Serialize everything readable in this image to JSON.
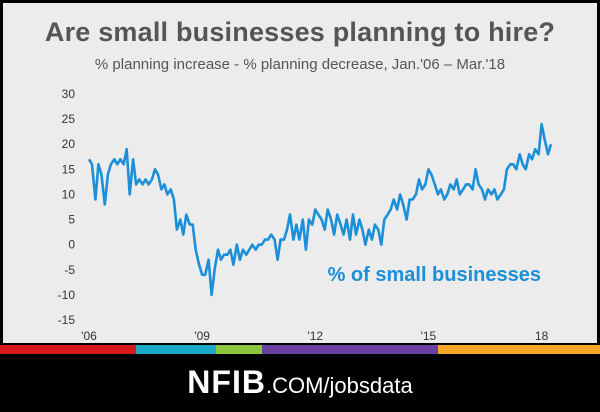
{
  "header": {
    "title": "Are small businesses planning to hire?",
    "subtitle": "% planning increase - % planning decrease, Jan.'06 – Mar.'18"
  },
  "footer": {
    "brand": "NFIB",
    "site": ".COM/jobsdata"
  },
  "colors": {
    "line": "#1b8fd8",
    "stripes": [
      "#d7191c",
      "#1aa8c8",
      "#8cc63f",
      "#6a3fa0",
      "#f5a623"
    ]
  },
  "chart_data": {
    "type": "line",
    "title": "Are small businesses planning to hire?",
    "subtitle": "% planning increase - % planning decrease, Jan.'06 – Mar.'18",
    "xlabel": "",
    "ylabel": "",
    "ylim": [
      -15,
      30
    ],
    "yticks": [
      -15,
      -10,
      -5,
      0,
      5,
      10,
      15,
      20,
      25,
      30
    ],
    "xlim": [
      2006.0,
      2018.25
    ],
    "xticks": [
      {
        "value": 2006.0,
        "label": "'06"
      },
      {
        "value": 2009.0,
        "label": "'09"
      },
      {
        "value": 2012.0,
        "label": "'12"
      },
      {
        "value": 2015.0,
        "label": "'15"
      },
      {
        "value": 2018.0,
        "label": "18"
      }
    ],
    "grid": false,
    "annotation": "% of small businesses",
    "series": [
      {
        "name": "",
        "points": [
          [
            2006.0,
            17
          ],
          [
            2006.08,
            16
          ],
          [
            2006.17,
            9
          ],
          [
            2006.25,
            16
          ],
          [
            2006.33,
            14
          ],
          [
            2006.42,
            8
          ],
          [
            2006.5,
            14
          ],
          [
            2006.58,
            16
          ],
          [
            2006.67,
            17
          ],
          [
            2006.75,
            16
          ],
          [
            2006.83,
            17
          ],
          [
            2006.92,
            16
          ],
          [
            2007.0,
            19
          ],
          [
            2007.08,
            10
          ],
          [
            2007.17,
            17
          ],
          [
            2007.25,
            12
          ],
          [
            2007.33,
            13
          ],
          [
            2007.42,
            12
          ],
          [
            2007.5,
            13
          ],
          [
            2007.58,
            12
          ],
          [
            2007.67,
            13
          ],
          [
            2007.75,
            15
          ],
          [
            2007.83,
            14
          ],
          [
            2007.92,
            11
          ],
          [
            2008.0,
            12
          ],
          [
            2008.08,
            10
          ],
          [
            2008.17,
            11
          ],
          [
            2008.25,
            9
          ],
          [
            2008.33,
            3
          ],
          [
            2008.42,
            5
          ],
          [
            2008.5,
            2
          ],
          [
            2008.58,
            6
          ],
          [
            2008.67,
            4
          ],
          [
            2008.75,
            4
          ],
          [
            2008.83,
            -1
          ],
          [
            2008.92,
            -4
          ],
          [
            2009.0,
            -6
          ],
          [
            2009.08,
            -6
          ],
          [
            2009.17,
            -3
          ],
          [
            2009.25,
            -10
          ],
          [
            2009.33,
            -5
          ],
          [
            2009.42,
            -1
          ],
          [
            2009.5,
            -3
          ],
          [
            2009.58,
            -2
          ],
          [
            2009.67,
            -2
          ],
          [
            2009.75,
            -1
          ],
          [
            2009.83,
            -4
          ],
          [
            2009.92,
            0
          ],
          [
            2010.0,
            -3
          ],
          [
            2010.08,
            -1
          ],
          [
            2010.17,
            -2
          ],
          [
            2010.25,
            -1
          ],
          [
            2010.33,
            0
          ],
          [
            2010.42,
            -1
          ],
          [
            2010.5,
            0
          ],
          [
            2010.58,
            0
          ],
          [
            2010.67,
            1
          ],
          [
            2010.75,
            1
          ],
          [
            2010.83,
            2
          ],
          [
            2010.92,
            1
          ],
          [
            2011.0,
            -3
          ],
          [
            2011.08,
            1
          ],
          [
            2011.17,
            1
          ],
          [
            2011.25,
            3
          ],
          [
            2011.33,
            6
          ],
          [
            2011.42,
            1
          ],
          [
            2011.5,
            4
          ],
          [
            2011.58,
            1
          ],
          [
            2011.67,
            5
          ],
          [
            2011.75,
            -1
          ],
          [
            2011.83,
            5
          ],
          [
            2011.92,
            4
          ],
          [
            2012.0,
            7
          ],
          [
            2012.08,
            6
          ],
          [
            2012.17,
            5
          ],
          [
            2012.25,
            3
          ],
          [
            2012.33,
            7
          ],
          [
            2012.42,
            5
          ],
          [
            2012.5,
            2
          ],
          [
            2012.58,
            6
          ],
          [
            2012.67,
            4
          ],
          [
            2012.75,
            2
          ],
          [
            2012.83,
            5
          ],
          [
            2012.92,
            1
          ],
          [
            2013.0,
            6
          ],
          [
            2013.08,
            2
          ],
          [
            2013.17,
            5
          ],
          [
            2013.25,
            3
          ],
          [
            2013.33,
            0
          ],
          [
            2013.42,
            3
          ],
          [
            2013.5,
            1
          ],
          [
            2013.58,
            4
          ],
          [
            2013.67,
            3
          ],
          [
            2013.75,
            0
          ],
          [
            2013.83,
            5
          ],
          [
            2013.92,
            6
          ],
          [
            2014.0,
            7
          ],
          [
            2014.08,
            9
          ],
          [
            2014.17,
            7
          ],
          [
            2014.25,
            10
          ],
          [
            2014.33,
            8
          ],
          [
            2014.42,
            5
          ],
          [
            2014.5,
            9
          ],
          [
            2014.58,
            9
          ],
          [
            2014.67,
            10
          ],
          [
            2014.75,
            13
          ],
          [
            2014.83,
            11
          ],
          [
            2014.92,
            12
          ],
          [
            2015.0,
            15
          ],
          [
            2015.08,
            14
          ],
          [
            2015.17,
            12
          ],
          [
            2015.25,
            10
          ],
          [
            2015.33,
            11
          ],
          [
            2015.42,
            9
          ],
          [
            2015.5,
            10
          ],
          [
            2015.58,
            12
          ],
          [
            2015.67,
            11
          ],
          [
            2015.75,
            13
          ],
          [
            2015.83,
            10
          ],
          [
            2015.92,
            11
          ],
          [
            2016.0,
            12
          ],
          [
            2016.08,
            12
          ],
          [
            2016.17,
            11
          ],
          [
            2016.25,
            15
          ],
          [
            2016.33,
            12
          ],
          [
            2016.42,
            11
          ],
          [
            2016.5,
            9
          ],
          [
            2016.58,
            11
          ],
          [
            2016.67,
            10
          ],
          [
            2016.75,
            11
          ],
          [
            2016.83,
            9
          ],
          [
            2016.92,
            10
          ],
          [
            2017.0,
            11
          ],
          [
            2017.08,
            15
          ],
          [
            2017.17,
            16
          ],
          [
            2017.25,
            16
          ],
          [
            2017.33,
            15
          ],
          [
            2017.42,
            18
          ],
          [
            2017.5,
            16
          ],
          [
            2017.58,
            15
          ],
          [
            2017.67,
            18
          ],
          [
            2017.75,
            17
          ],
          [
            2017.83,
            19
          ],
          [
            2017.92,
            18
          ],
          [
            2018.0,
            24
          ],
          [
            2018.08,
            21
          ],
          [
            2018.17,
            18
          ],
          [
            2018.25,
            20
          ]
        ]
      }
    ]
  }
}
